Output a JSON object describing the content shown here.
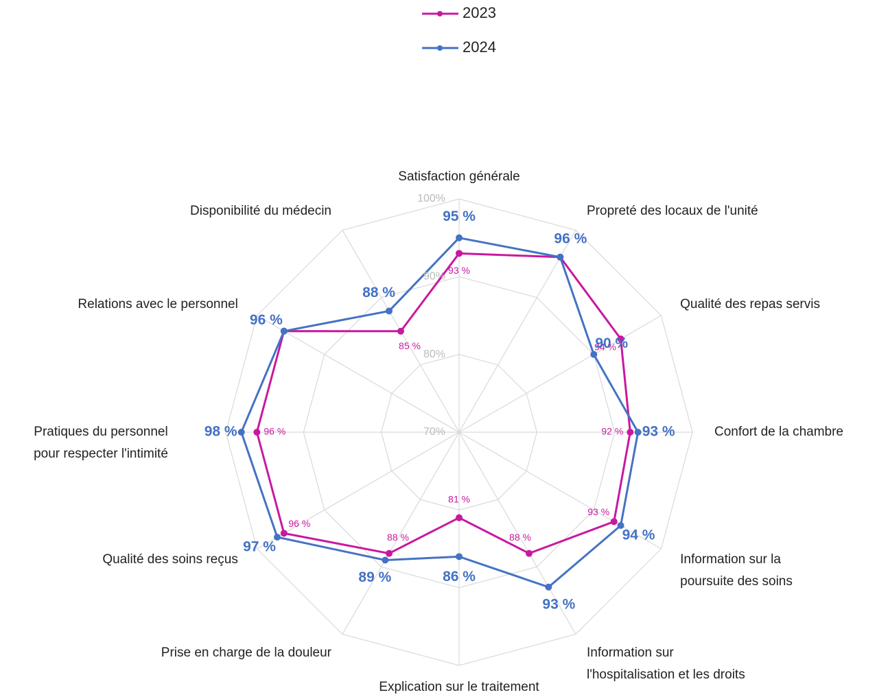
{
  "chart_data": {
    "type": "radar",
    "categories": [
      "Satisfaction générale",
      "Propreté des locaux de l'unité",
      "Qualité des repas servis",
      "Confort de la chambre",
      "Information sur la poursuite des soins",
      "Information sur l'hospitalisation et les droits",
      "Explication sur le traitement",
      "Prise en charge de la douleur",
      "Qualité des soins reçus",
      "Pratiques du personnel pour respecter l'intimité",
      "Relations avec le personnel",
      "Disponibilité du médecin"
    ],
    "series": [
      {
        "name": "2023",
        "color": "#c8189f",
        "values": [
          93,
          96,
          94,
          92,
          93,
          88,
          81,
          88,
          96,
          96,
          96,
          85
        ],
        "value_labels": [
          "93 %",
          null,
          "94 %",
          "92 %",
          "93 %",
          "88 %",
          "81 %",
          "88 %",
          "96 %",
          "96 %",
          null,
          "85 %"
        ]
      },
      {
        "name": "2024",
        "color": "#4472c4",
        "values": [
          95,
          96,
          90,
          93,
          94,
          93,
          86,
          89,
          97,
          98,
          96,
          88
        ],
        "value_labels": [
          "95 %",
          "96 %",
          "90 %",
          "93 %",
          "94 %",
          "93 %",
          "86 %",
          "89 %",
          "97 %",
          "98 %",
          "96 %",
          "88 %"
        ]
      }
    ],
    "rlim": [
      70,
      100
    ],
    "rticks": [
      {
        "value": 70,
        "label": "70%"
      },
      {
        "value": 80,
        "label": "80%"
      },
      {
        "value": 90,
        "label": "90%"
      },
      {
        "value": 100,
        "label": "100%"
      }
    ],
    "grid": true,
    "legend": "top"
  }
}
